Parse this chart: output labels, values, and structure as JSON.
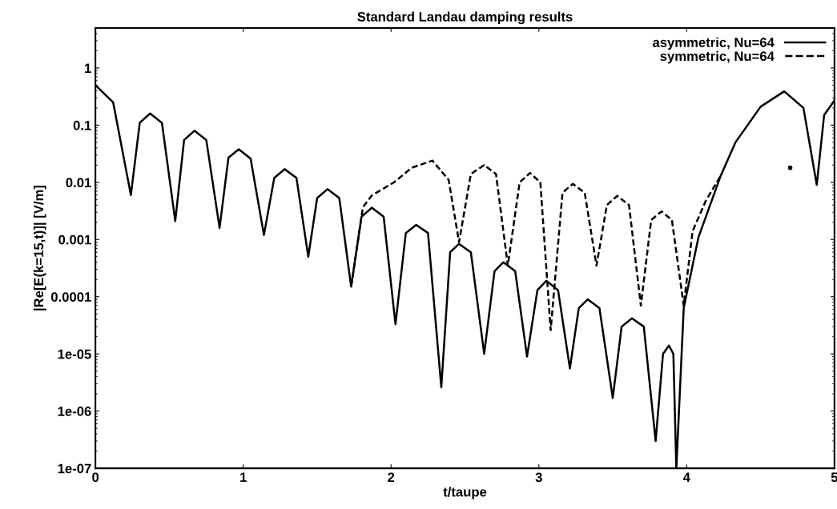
{
  "chart_data": {
    "type": "line",
    "title": "Standard Landau damping results",
    "xlabel": "t/taupe",
    "ylabel": "|Re[E(k=15,t)]| [V/m]",
    "log": "y",
    "xlim": [
      0,
      5
    ],
    "ylim": [
      1e-07,
      5
    ],
    "xticks": [
      0,
      1,
      2,
      3,
      4,
      5
    ],
    "yticks": [
      1e-07,
      1e-06,
      1e-05,
      0.0001,
      0.001,
      0.01,
      0.1,
      1
    ],
    "grid": false,
    "legend": "top right",
    "series": [
      {
        "name": "asymmetric, Nu=64",
        "color": "#000000",
        "line_style": "solid",
        "x": [
          0,
          0.12,
          0.24,
          0.3,
          0.37,
          0.45,
          0.54,
          0.6,
          0.67,
          0.75,
          0.84,
          0.9,
          0.97,
          1.05,
          1.14,
          1.21,
          1.28,
          1.36,
          1.44,
          1.5,
          1.57,
          1.65,
          1.73,
          1.8,
          1.87,
          1.95,
          2.03,
          2.1,
          2.17,
          2.25,
          2.34,
          2.4,
          2.46,
          2.54,
          2.63,
          2.7,
          2.76,
          2.84,
          2.92,
          2.99,
          3.05,
          3.13,
          3.21,
          3.27,
          3.33,
          3.41,
          3.5,
          3.56,
          3.63,
          3.71,
          3.79,
          3.84,
          3.88,
          3.91,
          3.93,
          3.98,
          4.08,
          4.23,
          4.33,
          4.5,
          4.66,
          4.79,
          4.88,
          4.93,
          5.0
        ],
        "values": [
          0.5,
          0.25,
          0.006,
          0.11,
          0.16,
          0.11,
          0.0021,
          0.055,
          0.08,
          0.055,
          0.0016,
          0.027,
          0.038,
          0.026,
          0.0012,
          0.012,
          0.017,
          0.012,
          0.0005,
          0.0053,
          0.0076,
          0.0053,
          0.00015,
          0.0025,
          0.0036,
          0.0025,
          3.3e-05,
          0.0013,
          0.0018,
          0.0013,
          2.6e-06,
          0.0006,
          0.00084,
          0.0006,
          1e-05,
          0.00028,
          0.0004,
          0.00028,
          9e-06,
          0.00013,
          0.00019,
          0.00013,
          5.6e-06,
          6.3e-05,
          9e-05,
          6.3e-05,
          1.7e-06,
          3e-05,
          4.2e-05,
          3e-05,
          3e-07,
          1e-05,
          1.4e-05,
          1e-05,
          1e-07,
          6.3e-05,
          0.0011,
          0.013,
          0.05,
          0.21,
          0.39,
          0.2,
          0.009,
          0.15,
          0.27
        ]
      },
      {
        "name": "symmetric, Nu=64",
        "color": "#000000",
        "line_style": "dashed",
        "x": [
          1.73,
          1.81,
          1.87,
          2.02,
          2.14,
          2.28,
          2.39,
          2.46,
          2.54,
          2.63,
          2.71,
          2.79,
          2.87,
          2.94,
          3.01,
          3.08,
          3.16,
          3.23,
          3.31,
          3.39,
          3.46,
          3.53,
          3.61,
          3.69,
          3.76,
          3.83,
          3.9,
          3.98,
          4.04,
          4.13,
          4.23
        ],
        "values": [
          0.00015,
          0.0037,
          0.0059,
          0.01,
          0.018,
          0.024,
          0.011,
          0.0009,
          0.014,
          0.02,
          0.014,
          0.00035,
          0.01,
          0.0146,
          0.01,
          2.6e-05,
          0.0066,
          0.0094,
          0.0066,
          0.00035,
          0.004,
          0.0058,
          0.004,
          7e-05,
          0.0022,
          0.0031,
          0.0022,
          7e-05,
          0.0014,
          0.0048,
          0.013
        ]
      },
      {
        "type": "scatter",
        "color": "#000000",
        "marker": "circle",
        "x": [
          4.7
        ],
        "values": [
          0.018
        ]
      }
    ]
  }
}
